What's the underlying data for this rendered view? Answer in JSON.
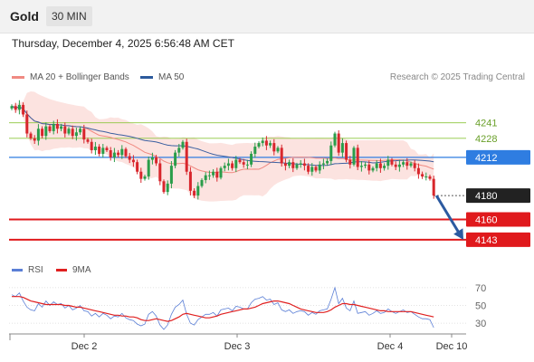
{
  "header": {
    "symbol": "Gold",
    "timeframe": "30 MIN"
  },
  "datetime": "Thursday, December 4, 2025 6:56:48 AM CET",
  "legend": [
    {
      "label": "MA 20 + Bollinger Bands",
      "color": "#f08a82"
    },
    {
      "label": "MA 50",
      "color": "#2c5a9c"
    }
  ],
  "credit": "Research © 2025 Trading Central",
  "rsi_legend": [
    {
      "label": "RSI",
      "color": "#5b7fd6"
    },
    {
      "label": "9MA",
      "color": "#e02020"
    }
  ],
  "chart_data": [
    {
      "type": "candlestick",
      "title": "",
      "ylim": [
        4130,
        4262
      ],
      "x_tick_labels": [
        "Dec 2",
        "Dec 3",
        "Dec 4",
        "Dec 10"
      ],
      "levels": [
        {
          "value": 4241,
          "label": "4241",
          "kind": "resistance-minor",
          "color": "#8dc63f"
        },
        {
          "value": 4228,
          "label": "4228",
          "kind": "resistance-minor",
          "color": "#8dc63f"
        },
        {
          "value": 4212,
          "label": "4212",
          "kind": "pivot",
          "color": "#2f7de1"
        },
        {
          "value": 4180,
          "label": "4180",
          "kind": "last-price",
          "color": "#222222"
        },
        {
          "value": 4160,
          "label": "4160",
          "kind": "support",
          "color": "#e0191c"
        },
        {
          "value": 4143,
          "label": "4143",
          "kind": "support",
          "color": "#e0191c"
        }
      ],
      "forecast_arrow": {
        "from": 4180,
        "to": 4143,
        "color": "#2c5aa0"
      },
      "closes": [
        4255,
        4252,
        4256,
        4248,
        4232,
        4228,
        4226,
        4236,
        4230,
        4238,
        4234,
        4240,
        4236,
        4238,
        4232,
        4236,
        4230,
        4233,
        4236,
        4227,
        4225,
        4218,
        4221,
        4215,
        4220,
        4218,
        4212,
        4216,
        4214,
        4219,
        4213,
        4210,
        4208,
        4200,
        4194,
        4196,
        4210,
        4212,
        4207,
        4192,
        4183,
        4190,
        4205,
        4216,
        4220,
        4225,
        4200,
        4184,
        4180,
        4188,
        4193,
        4197,
        4197,
        4200,
        4195,
        4203,
        4205,
        4207,
        4203,
        4210,
        4208,
        4206,
        4206,
        4215,
        4221,
        4224,
        4226,
        4222,
        4224,
        4217,
        4220,
        4207,
        4205,
        4208,
        4203,
        4206,
        4207,
        4205,
        4200,
        4204,
        4201,
        4206,
        4207,
        4209,
        4222,
        4232,
        4216,
        4224,
        4210,
        4206,
        4220,
        4204,
        4205,
        4206,
        4201,
        4203,
        4207,
        4203,
        4205,
        4210,
        4206,
        4204,
        4206,
        4208,
        4205,
        4207,
        4203,
        4198,
        4196,
        4196,
        4194,
        4180
      ]
    },
    {
      "type": "line",
      "title": "",
      "ylim": [
        25,
        78
      ],
      "y_ticks": [
        70,
        50,
        30
      ],
      "series": [
        {
          "name": "RSI",
          "values": [
            62,
            60,
            64,
            55,
            48,
            45,
            44,
            52,
            48,
            55,
            50,
            54,
            51,
            52,
            47,
            50,
            45,
            47,
            50,
            44,
            43,
            38,
            41,
            37,
            41,
            39,
            35,
            38,
            37,
            41,
            36,
            34,
            33,
            29,
            27,
            29,
            40,
            43,
            38,
            28,
            23,
            28,
            40,
            48,
            51,
            56,
            40,
            30,
            28,
            34,
            37,
            40,
            40,
            42,
            38,
            45,
            46,
            47,
            44,
            49,
            48,
            46,
            46,
            53,
            57,
            58,
            60,
            56,
            57,
            51,
            53,
            45,
            43,
            45,
            41,
            43,
            44,
            43,
            39,
            42,
            40,
            44,
            45,
            46,
            57,
            70,
            52,
            58,
            47,
            44,
            55,
            41,
            42,
            43,
            39,
            41,
            44,
            41,
            42,
            46,
            43,
            41,
            43,
            45,
            42,
            43,
            40,
            37,
            35,
            35,
            34,
            25
          ]
        },
        {
          "name": "9MA",
          "values": [
            60,
            60,
            60,
            59,
            57,
            55,
            54,
            53,
            52,
            51,
            51,
            51,
            51,
            51,
            50,
            50,
            49,
            48,
            48,
            47,
            46,
            45,
            44,
            43,
            42,
            41,
            40,
            39,
            39,
            38,
            38,
            37,
            37,
            36,
            34,
            33,
            33,
            34,
            35,
            34,
            33,
            32,
            33,
            35,
            37,
            40,
            41,
            40,
            39,
            38,
            37,
            36,
            36,
            37,
            38,
            40,
            41,
            42,
            43,
            44,
            45,
            46,
            46,
            47,
            48,
            50,
            52,
            53,
            54,
            55,
            55,
            54,
            53,
            52,
            50,
            48,
            46,
            45,
            44,
            43,
            42,
            42,
            42,
            43,
            45,
            48,
            50,
            52,
            52,
            51,
            51,
            50,
            49,
            48,
            47,
            46,
            45,
            44,
            44,
            43,
            43,
            43,
            43,
            43,
            43,
            43,
            42,
            41,
            40,
            39,
            38,
            37
          ]
        }
      ]
    }
  ]
}
